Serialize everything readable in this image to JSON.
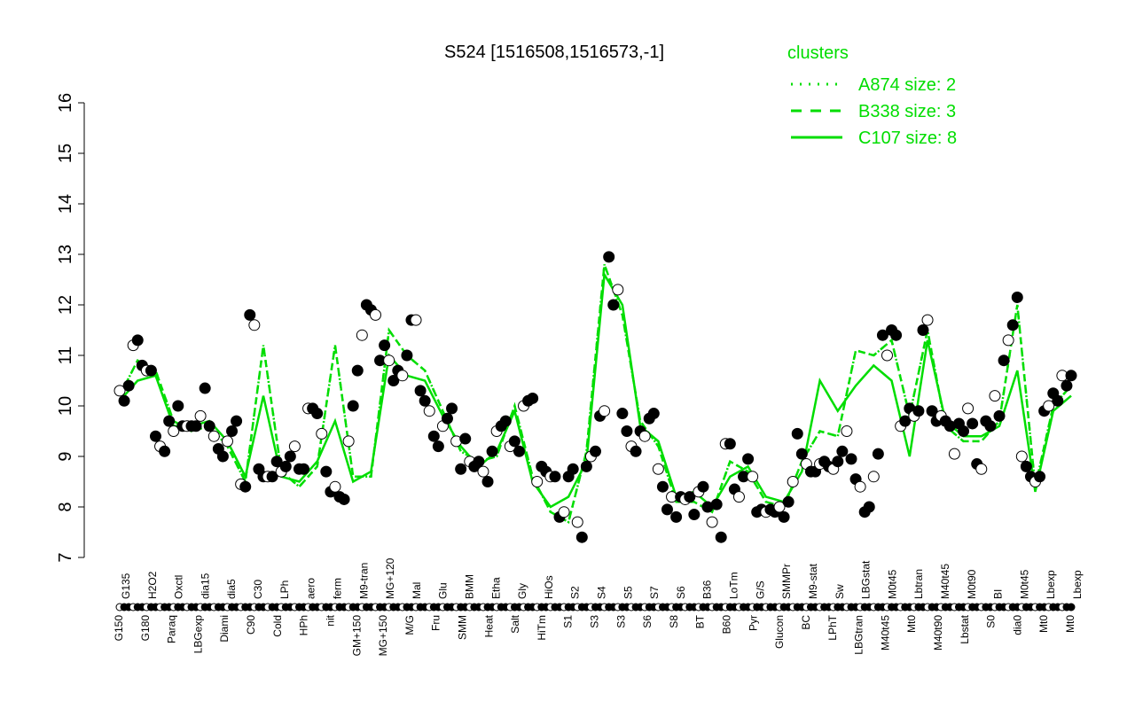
{
  "chart_data": {
    "type": "line",
    "title": "S524 [1516508,1516573,-1]",
    "xlabel": "",
    "ylabel": "",
    "ylim": [
      7,
      16
    ],
    "yticks": [
      7,
      8,
      9,
      10,
      11,
      12,
      13,
      14,
      15,
      16
    ],
    "grid": false,
    "legend_placement": "top-right",
    "legend_title": "clusters",
    "colors": {
      "line": "#00dd00",
      "point_edge": "#000000",
      "filled": "#000000",
      "open": "#ffffff"
    },
    "legend": [
      {
        "label": "A874 size: 2",
        "style": "dotted"
      },
      {
        "label": "B338 size: 3",
        "style": "dashed"
      },
      {
        "label": "C107 size: 8",
        "style": "solid"
      }
    ],
    "labels_top": [
      "G135",
      "H2O2",
      "Oxctl",
      "dia15",
      "dia5",
      "C30",
      "LPh",
      "aero",
      "ferm",
      "M9-tran",
      "MG+120",
      "Mal",
      "Glu",
      "BMM",
      "Etha",
      "Gly",
      "HiOs",
      "S2",
      "S4",
      "S5",
      "S7",
      "S6",
      "B36",
      "LoTm",
      "G/S",
      "SMMPr",
      "M9-stat",
      "Sw",
      "LBGstat",
      "M0t45",
      "Lbtran",
      "M40t45",
      "M0t90",
      "BI",
      "M0t45",
      "Lbexp",
      "Lbexp"
    ],
    "labels_bottom": [
      "G150",
      "G180",
      "Paraq",
      "LBGexp",
      "Diami",
      "C90",
      "Cold",
      "HPh",
      "nit",
      "GM+150",
      "MG+150",
      "M/G",
      "Fru",
      "SMM",
      "Heat",
      "Salt",
      "HiTm",
      "S1",
      "S3",
      "S3",
      "S6",
      "S8",
      "BT",
      "B60",
      "Pyr",
      "Glucon",
      "BC",
      "LPhT",
      "LBGtran",
      "M40t45",
      "Mt0",
      "M40t90",
      "Lbstat",
      "S0",
      "dia0",
      "Mt0",
      "Mt0"
    ],
    "points": {
      "values": [
        10.3,
        10.1,
        10.4,
        11.2,
        11.3,
        10.8,
        10.7,
        10.7,
        9.4,
        9.2,
        9.1,
        9.7,
        9.5,
        10.0,
        9.6,
        9.6,
        9.6,
        9.6,
        9.8,
        10.35,
        9.6,
        9.4,
        9.15,
        9.0,
        9.3,
        9.5,
        9.7,
        8.45,
        8.4,
        11.8,
        11.6,
        8.75,
        8.6,
        8.6,
        8.6,
        8.9,
        8.7,
        8.8,
        9.0,
        9.2,
        8.75,
        8.75,
        9.95,
        9.95,
        9.85,
        9.45,
        8.7,
        8.3,
        8.4,
        8.2,
        8.15,
        9.3,
        10.0,
        10.7,
        11.4,
        12.0,
        11.9,
        11.8,
        10.9,
        11.2,
        10.9,
        10.5,
        10.7,
        10.6,
        11.0,
        11.7,
        11.7,
        10.3,
        10.1,
        9.9,
        9.4,
        9.2,
        9.6,
        9.75,
        9.95,
        9.3,
        8.75,
        9.35,
        8.9,
        8.8,
        8.9,
        8.7,
        8.5,
        9.1,
        9.5,
        9.6,
        9.7,
        9.2,
        9.3,
        9.1,
        10.0,
        10.1,
        10.15,
        8.5,
        8.8,
        8.7,
        8.6,
        8.6,
        7.8,
        7.9,
        8.6,
        8.75,
        7.7,
        7.4,
        8.8,
        9.0,
        9.1,
        9.8,
        9.9,
        12.95,
        12.0,
        12.3,
        9.85,
        9.5,
        9.2,
        9.1,
        9.5,
        9.4,
        9.75,
        9.85,
        8.75,
        8.4,
        7.95,
        8.2,
        7.8,
        8.2,
        8.15,
        8.2,
        7.85,
        8.3,
        8.4,
        8.0,
        7.7,
        8.05,
        7.4,
        9.25,
        9.25,
        8.35,
        8.2,
        8.6,
        8.95,
        8.6,
        7.9,
        7.95,
        7.9,
        7.95,
        7.9,
        8.0,
        7.8,
        8.1,
        8.5,
        9.45,
        9.05,
        8.85,
        8.7,
        8.7,
        8.85,
        8.9,
        8.8,
        8.75,
        8.9,
        9.1,
        9.5,
        8.95,
        8.55,
        8.4,
        7.9,
        8.0,
        8.6,
        9.05,
        11.4,
        11.0,
        11.5,
        11.4,
        9.6,
        9.7,
        9.95,
        9.8,
        9.9,
        11.5,
        11.7,
        9.9,
        9.7,
        9.8,
        9.7,
        9.6,
        9.05,
        9.65,
        9.5,
        9.95,
        9.65,
        8.85,
        8.75,
        9.7,
        9.6,
        10.2,
        9.8,
        10.9,
        11.3,
        11.6,
        12.15,
        9.0,
        8.8,
        8.6,
        8.5,
        8.6,
        9.9,
        10.0,
        10.25,
        10.1,
        10.6,
        10.4,
        10.6
      ]
    },
    "series": [
      {
        "name": "C107 size: 8",
        "style": "solid",
        "values": [
          10.1,
          10.5,
          10.6,
          9.6,
          9.6,
          9.7,
          9.3,
          8.6,
          10.2,
          8.6,
          8.5,
          8.9,
          9.7,
          8.5,
          8.7,
          11.0,
          10.6,
          10.5,
          9.8,
          9.2,
          8.8,
          9.1,
          9.9,
          8.5,
          8.0,
          8.2,
          8.9,
          12.6,
          12.0,
          9.6,
          9.3,
          8.2,
          8.3,
          8.0,
          8.6,
          8.8,
          8.2,
          8.1,
          8.7,
          10.5,
          9.9,
          10.4,
          10.8,
          10.5,
          9.0,
          11.3,
          9.7,
          9.4,
          9.4,
          9.6,
          10.7,
          8.3,
          9.9,
          10.2
        ]
      },
      {
        "name": "B338 size: 3",
        "style": "dashed",
        "values": [
          10.2,
          10.9,
          10.7,
          9.7,
          9.5,
          9.6,
          9.2,
          8.5,
          11.2,
          8.7,
          8.4,
          8.8,
          11.2,
          8.6,
          8.6,
          11.5,
          11.0,
          10.7,
          9.9,
          9.1,
          8.9,
          9.0,
          10.0,
          8.6,
          7.9,
          7.7,
          9.1,
          12.8,
          11.8,
          9.7,
          9.2,
          8.1,
          8.1,
          7.9,
          8.9,
          8.7,
          8.1,
          8.0,
          8.9,
          9.5,
          9.4,
          11.1,
          11.0,
          11.3,
          9.8,
          11.5,
          9.6,
          9.3,
          9.3,
          9.7,
          12.0,
          8.4,
          10.0,
          10.4
        ]
      },
      {
        "name": "A874 size: 2",
        "style": "dotted",
        "values": [
          10.2,
          10.9,
          10.7,
          9.7,
          9.5,
          9.6,
          9.2,
          8.5,
          11.2,
          8.7,
          8.4,
          8.8,
          11.2,
          8.6,
          8.6,
          11.5,
          11.0,
          10.7,
          9.9,
          9.1,
          8.9,
          9.0,
          10.0,
          8.6,
          7.9,
          7.7,
          9.1,
          12.8,
          11.8,
          9.7,
          9.2,
          8.1,
          8.1,
          7.9,
          8.9,
          8.7,
          8.1,
          8.0,
          8.9,
          9.5,
          9.4,
          11.1,
          11.0,
          11.3,
          9.8,
          11.5,
          9.6,
          9.3,
          9.3,
          9.7,
          12.0,
          8.4,
          10.0,
          10.4
        ]
      }
    ]
  }
}
